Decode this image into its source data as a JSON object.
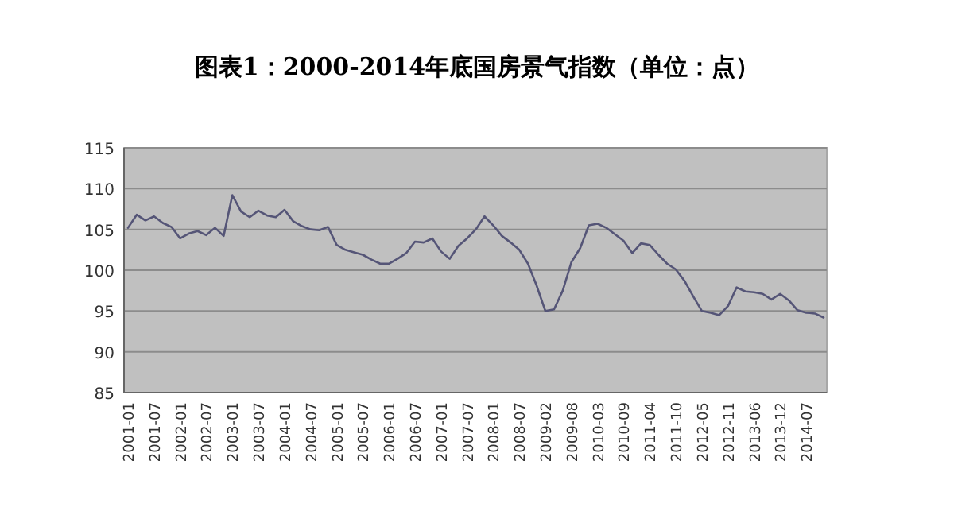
{
  "chart_data": {
    "type": "line",
    "title": "图表1：2000-2014年底国房景气指数（单位：点）",
    "categories": [
      "2001-01",
      null,
      null,
      "2001-07",
      null,
      null,
      "2002-01",
      null,
      null,
      "2002-07",
      null,
      null,
      "2003-01",
      null,
      null,
      "2003-07",
      null,
      null,
      "2004-01",
      null,
      null,
      "2004-07",
      null,
      null,
      "2005-01",
      null,
      null,
      "2005-07",
      null,
      null,
      "2006-01",
      null,
      null,
      "2006-07",
      null,
      null,
      "2007-01",
      null,
      null,
      "2007-07",
      null,
      null,
      "2008-01",
      null,
      null,
      "2008-07",
      null,
      null,
      "2009-02",
      null,
      null,
      "2009-08",
      null,
      null,
      "2010-03",
      null,
      null,
      "2010-09",
      null,
      null,
      "2011-04",
      null,
      null,
      "2011-10",
      null,
      null,
      "2012-05",
      null,
      null,
      "2012-11",
      null,
      null,
      "2013-06",
      null,
      null,
      "2013-12",
      null,
      null,
      "2014-07",
      null,
      null
    ],
    "values": [
      105.2,
      106.8,
      106.1,
      106.6,
      105.8,
      105.3,
      103.9,
      104.5,
      104.8,
      104.3,
      105.2,
      104.2,
      109.2,
      107.2,
      106.5,
      107.3,
      106.7,
      106.5,
      107.4,
      106.0,
      105.4,
      105.0,
      104.9,
      105.3,
      103.1,
      102.5,
      102.2,
      101.9,
      101.3,
      100.8,
      100.8,
      101.4,
      102.1,
      103.5,
      103.4,
      103.9,
      102.3,
      101.4,
      103.0,
      103.9,
      105.0,
      106.6,
      105.5,
      104.2,
      103.4,
      102.5,
      100.8,
      98.1,
      95.0,
      95.2,
      97.5,
      101.0,
      102.7,
      105.5,
      105.7,
      105.2,
      104.4,
      103.6,
      102.1,
      103.3,
      103.1,
      101.9,
      100.8,
      100.1,
      98.7,
      96.8,
      95.0,
      94.8,
      94.5,
      95.6,
      97.9,
      97.4,
      97.3,
      97.1,
      96.4,
      97.1,
      96.3,
      95.1,
      94.8,
      94.7,
      94.2
    ],
    "color": "#555577",
    "ylim": [
      85,
      115
    ],
    "yticks": [
      85,
      90,
      95,
      100,
      105,
      110,
      115
    ],
    "grid": "y",
    "marker": "none",
    "line_style": "solid"
  }
}
